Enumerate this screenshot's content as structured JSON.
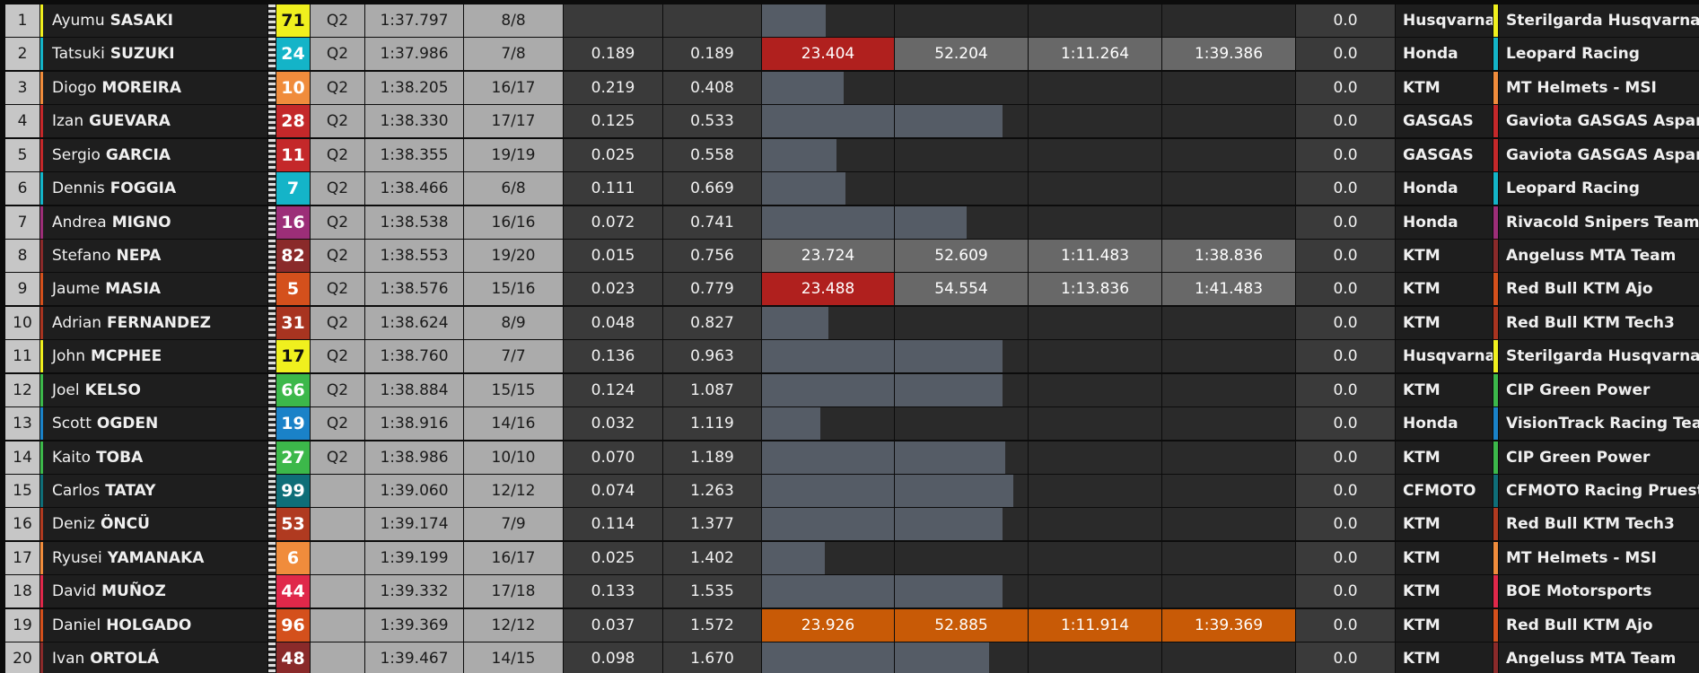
{
  "table": {
    "rows": [
      {
        "pos": 1,
        "first": "Ayumu",
        "last": "SASAKI",
        "number": 71,
        "color": "#f0f01e",
        "number_text": "#111",
        "session": "Q2",
        "time": "1:37.797",
        "laps": "8/8",
        "gap": null,
        "diff": null,
        "sectors": [
          null,
          null,
          null,
          null
        ],
        "zero": "0.0",
        "manufacturer": "Husqvarna",
        "team": "Sterilgarda Husqvarna Max"
      },
      {
        "pos": 2,
        "first": "Tatsuki",
        "last": "SUZUKI",
        "number": 24,
        "color": "#14b4c8",
        "number_text": "#fff",
        "session": "Q2",
        "time": "1:37.986",
        "laps": "7/8",
        "gap": "0.189",
        "diff": "0.189",
        "sectors": [
          {
            "text": "23.404",
            "color": "#b0201e"
          },
          {
            "text": "52.204",
            "color": "#686868"
          },
          {
            "text": "1:11.264",
            "color": "#686868"
          },
          {
            "text": "1:39.386",
            "color": "#686868"
          }
        ],
        "zero": "0.0",
        "manufacturer": "Honda",
        "team": "Leopard Racing"
      },
      {
        "pos": 3,
        "first": "Diogo",
        "last": "MOREIRA",
        "number": 10,
        "color": "#f08c3c",
        "number_text": "#fff",
        "session": "Q2",
        "time": "1:38.205",
        "laps": "16/17",
        "gap": "0.219",
        "diff": "0.408",
        "sectors": [
          null,
          null,
          null,
          null
        ],
        "zero": "0.0",
        "manufacturer": "KTM",
        "team": "MT Helmets - MSI"
      },
      {
        "pos": 4,
        "first": "Izan",
        "last": "GUEVARA",
        "number": 28,
        "color": "#c4282a",
        "number_text": "#fff",
        "session": "Q2",
        "time": "1:38.330",
        "laps": "17/17",
        "gap": "0.125",
        "diff": "0.533",
        "sectors": [
          null,
          null,
          null,
          null
        ],
        "zero": "0.0",
        "manufacturer": "GASGAS",
        "team": "Gaviota GASGAS Aspar Team"
      },
      {
        "pos": 5,
        "first": "Sergio",
        "last": "GARCIA",
        "number": 11,
        "color": "#c4282a",
        "number_text": "#fff",
        "session": "Q2",
        "time": "1:38.355",
        "laps": "19/19",
        "gap": "0.025",
        "diff": "0.558",
        "sectors": [
          null,
          null,
          null,
          null
        ],
        "zero": "0.0",
        "manufacturer": "GASGAS",
        "team": "Gaviota GASGAS Aspar Team"
      },
      {
        "pos": 6,
        "first": "Dennis",
        "last": "FOGGIA",
        "number": 7,
        "color": "#14b4c8",
        "number_text": "#fff",
        "session": "Q2",
        "time": "1:38.466",
        "laps": "6/8",
        "gap": "0.111",
        "diff": "0.669",
        "sectors": [
          null,
          null,
          null,
          null
        ],
        "zero": "0.0",
        "manufacturer": "Honda",
        "team": "Leopard Racing"
      },
      {
        "pos": 7,
        "first": "Andrea",
        "last": "MIGNO",
        "number": 16,
        "color": "#9c2e78",
        "number_text": "#fff",
        "session": "Q2",
        "time": "1:38.538",
        "laps": "16/16",
        "gap": "0.072",
        "diff": "0.741",
        "sectors": [
          null,
          null,
          null,
          null
        ],
        "zero": "0.0",
        "manufacturer": "Honda",
        "team": "Rivacold Snipers Team"
      },
      {
        "pos": 8,
        "first": "Stefano",
        "last": "NEPA",
        "number": 82,
        "color": "#8a2a2a",
        "number_text": "#fff",
        "session": "Q2",
        "time": "1:38.553",
        "laps": "19/20",
        "gap": "0.015",
        "diff": "0.756",
        "sectors": [
          {
            "text": "23.724",
            "color": "#686868"
          },
          {
            "text": "52.609",
            "color": "#686868"
          },
          {
            "text": "1:11.483",
            "color": "#686868"
          },
          {
            "text": "1:38.836",
            "color": "#686868"
          }
        ],
        "zero": "0.0",
        "manufacturer": "KTM",
        "team": "Angeluss MTA Team"
      },
      {
        "pos": 9,
        "first": "Jaume",
        "last": "MASIA",
        "number": 5,
        "color": "#d4501c",
        "number_text": "#fff",
        "session": "Q2",
        "time": "1:38.576",
        "laps": "15/16",
        "gap": "0.023",
        "diff": "0.779",
        "sectors": [
          {
            "text": "23.488",
            "color": "#b0201e"
          },
          {
            "text": "54.554",
            "color": "#686868"
          },
          {
            "text": "1:13.836",
            "color": "#686868"
          },
          {
            "text": "1:41.483",
            "color": "#686868"
          }
        ],
        "zero": "0.0",
        "manufacturer": "KTM",
        "team": "Red Bull KTM Ajo"
      },
      {
        "pos": 10,
        "first": "Adrian",
        "last": "FERNANDEZ",
        "number": 31,
        "color": "#a83420",
        "number_text": "#fff",
        "session": "Q2",
        "time": "1:38.624",
        "laps": "8/9",
        "gap": "0.048",
        "diff": "0.827",
        "sectors": [
          null,
          null,
          null,
          null
        ],
        "zero": "0.0",
        "manufacturer": "KTM",
        "team": "Red Bull KTM Tech3"
      },
      {
        "pos": 11,
        "first": "John",
        "last": "MCPHEE",
        "number": 17,
        "color": "#f0f01e",
        "number_text": "#111",
        "session": "Q2",
        "time": "1:38.760",
        "laps": "7/7",
        "gap": "0.136",
        "diff": "0.963",
        "sectors": [
          null,
          null,
          null,
          null
        ],
        "zero": "0.0",
        "manufacturer": "Husqvarna",
        "team": "Sterilgarda Husqvarna Max"
      },
      {
        "pos": 12,
        "first": "Joel",
        "last": "KELSO",
        "number": 66,
        "color": "#3cb84a",
        "number_text": "#fff",
        "session": "Q2",
        "time": "1:38.884",
        "laps": "15/15",
        "gap": "0.124",
        "diff": "1.087",
        "sectors": [
          null,
          null,
          null,
          null
        ],
        "zero": "0.0",
        "manufacturer": "KTM",
        "team": "CIP Green Power"
      },
      {
        "pos": 13,
        "first": "Scott",
        "last": "OGDEN",
        "number": 19,
        "color": "#1a82c8",
        "number_text": "#fff",
        "session": "Q2",
        "time": "1:38.916",
        "laps": "14/16",
        "gap": "0.032",
        "diff": "1.119",
        "sectors": [
          null,
          null,
          null,
          null
        ],
        "zero": "0.0",
        "manufacturer": "Honda",
        "team": "VisionTrack Racing Team"
      },
      {
        "pos": 14,
        "first": "Kaito",
        "last": "TOBA",
        "number": 27,
        "color": "#3cb84a",
        "number_text": "#fff",
        "session": "Q2",
        "time": "1:38.986",
        "laps": "10/10",
        "gap": "0.070",
        "diff": "1.189",
        "sectors": [
          null,
          null,
          null,
          null
        ],
        "zero": "0.0",
        "manufacturer": "KTM",
        "team": "CIP Green Power"
      },
      {
        "pos": 15,
        "first": "Carlos",
        "last": "TATAY",
        "number": 99,
        "color": "#0f6e78",
        "number_text": "#fff",
        "session": null,
        "time": "1:39.060",
        "laps": "12/12",
        "gap": "0.074",
        "diff": "1.263",
        "sectors": [
          null,
          null,
          null,
          null
        ],
        "zero": "0.0",
        "manufacturer": "CFMOTO",
        "team": "CFMOTO Racing PruestelGP"
      },
      {
        "pos": 16,
        "first": "Deniz",
        "last": "ÖNCÜ",
        "number": 53,
        "color": "#b03a20",
        "number_text": "#fff",
        "session": null,
        "time": "1:39.174",
        "laps": "7/9",
        "gap": "0.114",
        "diff": "1.377",
        "sectors": [
          null,
          null,
          null,
          null
        ],
        "zero": "0.0",
        "manufacturer": "KTM",
        "team": "Red Bull KTM Tech3"
      },
      {
        "pos": 17,
        "first": "Ryusei",
        "last": "YAMANAKA",
        "number": 6,
        "color": "#f08c3c",
        "number_text": "#fff",
        "session": null,
        "time": "1:39.199",
        "laps": "16/17",
        "gap": "0.025",
        "diff": "1.402",
        "sectors": [
          null,
          null,
          null,
          null
        ],
        "zero": "0.0",
        "manufacturer": "KTM",
        "team": "MT Helmets - MSI"
      },
      {
        "pos": 18,
        "first": "David",
        "last": "MUÑOZ",
        "number": 44,
        "color": "#e0284a",
        "number_text": "#fff",
        "session": null,
        "time": "1:39.332",
        "laps": "17/18",
        "gap": "0.133",
        "diff": "1.535",
        "sectors": [
          null,
          null,
          null,
          null
        ],
        "zero": "0.0",
        "manufacturer": "KTM",
        "team": "BOE Motorsports"
      },
      {
        "pos": 19,
        "first": "Daniel",
        "last": "HOLGADO",
        "number": 96,
        "color": "#d4501c",
        "number_text": "#fff",
        "session": null,
        "time": "1:39.369",
        "laps": "12/12",
        "gap": "0.037",
        "diff": "1.572",
        "sectors": [
          {
            "text": "23.926",
            "color": "#c85a06"
          },
          {
            "text": "52.885",
            "color": "#c85a06"
          },
          {
            "text": "1:11.914",
            "color": "#c85a06"
          },
          {
            "text": "1:39.369",
            "color": "#c85a06"
          }
        ],
        "zero": "0.0",
        "manufacturer": "KTM",
        "team": "Red Bull KTM Ajo"
      },
      {
        "pos": 20,
        "first": "Ivan",
        "last": "ORTOLÁ",
        "number": 48,
        "color": "#8a2a2a",
        "number_text": "#fff",
        "session": null,
        "time": "1:39.467",
        "laps": "14/15",
        "gap": "0.098",
        "diff": "1.670",
        "sectors": [
          null,
          null,
          null,
          null
        ],
        "zero": "0.0",
        "manufacturer": "KTM",
        "team": "Angeluss MTA Team"
      }
    ]
  }
}
